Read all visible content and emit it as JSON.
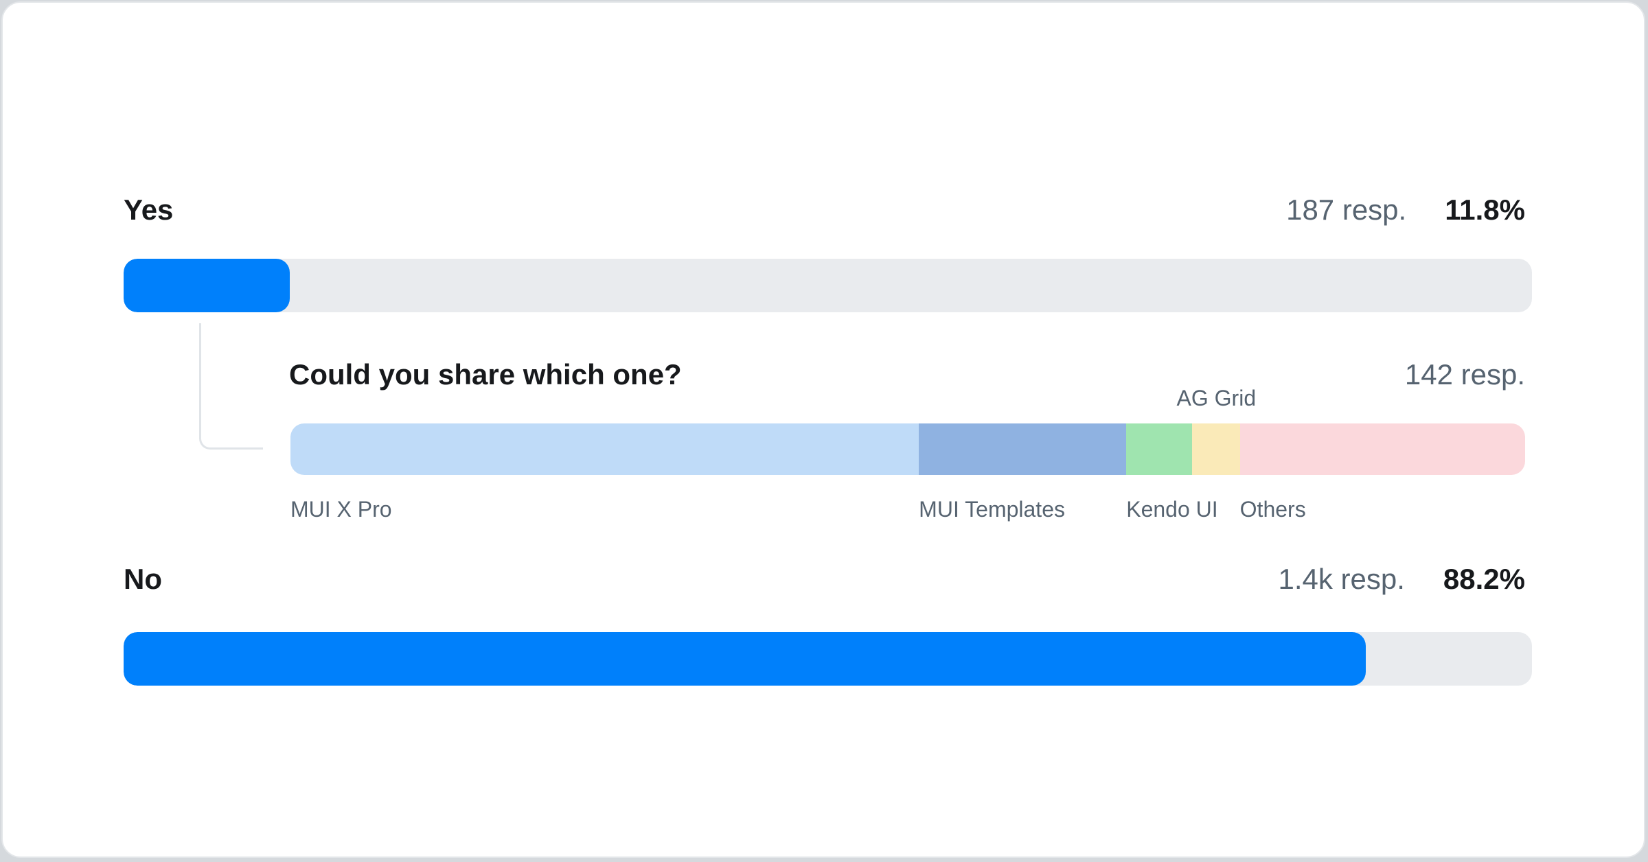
{
  "chart_data": {
    "type": "bar",
    "orientation": "horizontal",
    "title": "",
    "unit": "percent of respondents",
    "colors": {
      "bar_fill": "#0080fb",
      "bar_track": "#e9ebee",
      "text_dark": "#17191c",
      "text_gray": "#566370",
      "connector": "#e0e4e8",
      "page_background": "#d5d9dd",
      "card_background": "#ffffff",
      "card_border": "#e3e6e9"
    },
    "bars": [
      {
        "label": "Yes",
        "value_pct": 11.8,
        "value_label": "11.8%",
        "responses": 187,
        "responses_label": "187 resp."
      },
      {
        "label": "No",
        "value_pct": 88.2,
        "value_label": "88.2%",
        "responses": 1400,
        "responses_label": "1.4k resp."
      }
    ],
    "followup": {
      "type": "stacked-bar",
      "title": "Could you share which one?",
      "responses": 142,
      "responses_label": "142 resp.",
      "segments": [
        {
          "label": "MUI X Pro",
          "value_pct": 50.9,
          "color": "#bfdbf8",
          "label_placement": "below"
        },
        {
          "label": "MUI Templates",
          "value_pct": 16.8,
          "color": "#8fb2e1",
          "label_placement": "below"
        },
        {
          "label": "Kendo UI",
          "value_pct": 5.3,
          "color": "#9fe4af",
          "label_placement": "below"
        },
        {
          "label": "AG Grid",
          "value_pct": 3.9,
          "color": "#faeab8",
          "label_placement": "above"
        },
        {
          "label": "Others",
          "value_pct": 23.1,
          "color": "#fbd8dc",
          "label_placement": "below"
        }
      ]
    }
  }
}
